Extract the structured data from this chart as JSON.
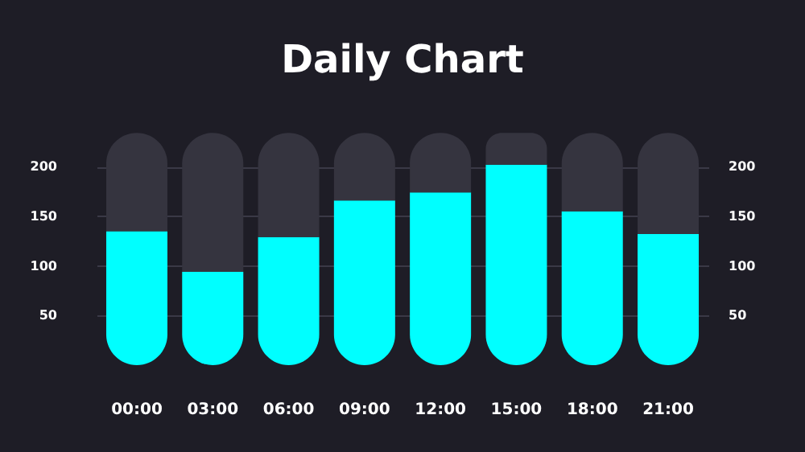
{
  "chart_data": {
    "type": "bar",
    "title": "Daily Chart",
    "stacked": true,
    "categories": [
      "00:00",
      "03:00",
      "06:00",
      "09:00",
      "12:00",
      "15:00",
      "18:00",
      "21:00"
    ],
    "series": [
      {
        "color": "#00ffff",
        "values": [
          135,
          94,
          129,
          166,
          174,
          202,
          155,
          132
        ]
      },
      {
        "color": "#35343f",
        "values": [
          99,
          140,
          105,
          68,
          60,
          32,
          79,
          102
        ]
      }
    ],
    "ylim": [
      0,
      235
    ],
    "yticks": [
      50,
      100,
      150,
      200
    ],
    "y2lim": [
      0,
      235
    ],
    "y2ticks": [
      50,
      100,
      150,
      200
    ],
    "grid": "y"
  }
}
